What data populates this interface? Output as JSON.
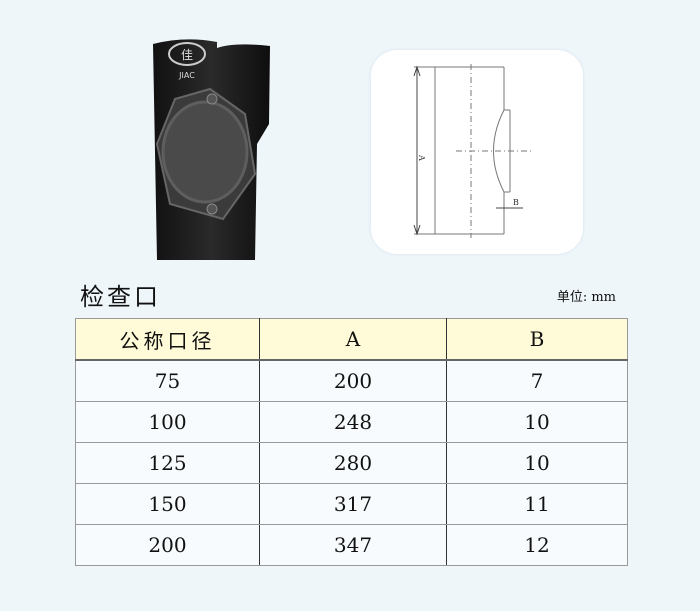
{
  "product_photo": {
    "logo_text": "JIAC",
    "logo_char": "佳"
  },
  "drawing": {
    "dim_a": "A",
    "dim_b": "B"
  },
  "title": "检查口",
  "unit": "单位: mm",
  "table": {
    "headers": [
      "公称口径",
      "A",
      "B"
    ],
    "rows": [
      [
        "75",
        "200",
        "7"
      ],
      [
        "100",
        "248",
        "10"
      ],
      [
        "125",
        "280",
        "10"
      ],
      [
        "150",
        "317",
        "11"
      ],
      [
        "200",
        "347",
        "12"
      ]
    ]
  }
}
